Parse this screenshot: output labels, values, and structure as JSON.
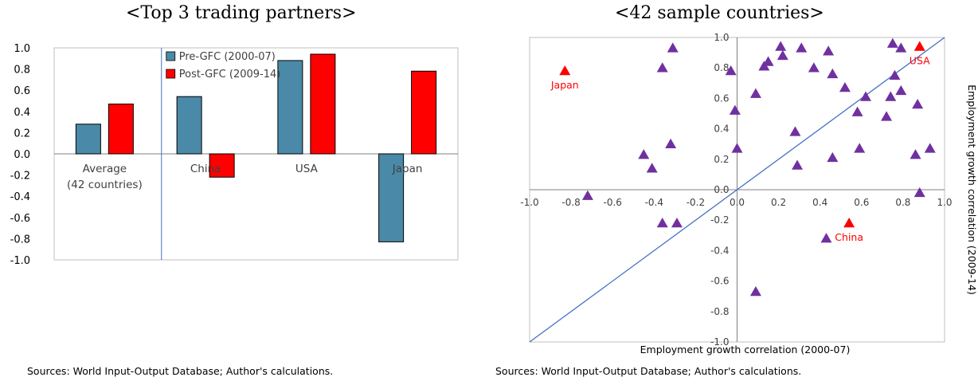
{
  "left_panel": {
    "title": "<Top 3 trading partners>",
    "source": "Sources: World Input-Output Database; Author's calculations."
  },
  "right_panel": {
    "title": "<42 sample countries>",
    "source": "Sources: World Input-Output Database; Author's calculations."
  },
  "colors": {
    "pre_gfc": "#4a89a8",
    "post_gfc": "#ff0000",
    "scatter_marker": "#7030a0",
    "highlight_marker": "#ff0000",
    "diagonal_line": "#4472c4"
  },
  "chart_data": [
    {
      "type": "bar",
      "categories": [
        "Average\n(42 countries)",
        "China",
        "USA",
        "Japan"
      ],
      "series": [
        {
          "name": "Pre-GFC (2000-07)",
          "values": [
            0.28,
            0.54,
            0.88,
            -0.83
          ]
        },
        {
          "name": "Post-GFC (2009-14)",
          "values": [
            0.47,
            -0.22,
            0.94,
            0.78
          ]
        }
      ],
      "ylim": [
        -1.0,
        1.0
      ],
      "yticks": [
        "-1.0",
        "-0.8",
        "-0.6",
        "-0.4",
        "-0.2",
        "0.0",
        "0.2",
        "0.4",
        "0.6",
        "0.8",
        "1.0"
      ],
      "legend": "top",
      "grid": false
    },
    {
      "type": "scatter",
      "xlabel": "Employment growth correlation (2000-07)",
      "ylabel": "Employment growth correlation (2009-14)",
      "xlim": [
        -1.0,
        1.0
      ],
      "ylim": [
        -1.0,
        1.0
      ],
      "xticks": [
        "-1.0",
        "-0.8",
        "-0.6",
        "-0.4",
        "-0.2",
        "0.0",
        "0.2",
        "0.4",
        "0.6",
        "0.8",
        "1.0"
      ],
      "yticks": [
        "-1.0",
        "-0.8",
        "-0.6",
        "-0.4",
        "-0.2",
        "0.0",
        "0.2",
        "0.4",
        "0.6",
        "0.8",
        "1.0"
      ],
      "diagonal": "45-degree line",
      "points": [
        {
          "x": -0.72,
          "y": -0.04
        },
        {
          "x": -0.36,
          "y": 0.8
        },
        {
          "x": -0.31,
          "y": 0.93
        },
        {
          "x": -0.45,
          "y": 0.23
        },
        {
          "x": -0.41,
          "y": 0.14
        },
        {
          "x": -0.32,
          "y": 0.3
        },
        {
          "x": -0.36,
          "y": -0.22
        },
        {
          "x": -0.29,
          "y": -0.22
        },
        {
          "x": -0.03,
          "y": 0.78
        },
        {
          "x": -0.01,
          "y": 0.52
        },
        {
          "x": 0.0,
          "y": 0.27
        },
        {
          "x": 0.09,
          "y": 0.63
        },
        {
          "x": 0.13,
          "y": 0.81
        },
        {
          "x": 0.15,
          "y": 0.84
        },
        {
          "x": 0.21,
          "y": 0.94
        },
        {
          "x": 0.22,
          "y": 0.88
        },
        {
          "x": 0.28,
          "y": 0.38
        },
        {
          "x": 0.29,
          "y": 0.16
        },
        {
          "x": 0.31,
          "y": 0.93
        },
        {
          "x": 0.37,
          "y": 0.8
        },
        {
          "x": 0.44,
          "y": 0.91
        },
        {
          "x": 0.46,
          "y": 0.76
        },
        {
          "x": 0.46,
          "y": 0.21
        },
        {
          "x": 0.52,
          "y": 0.67
        },
        {
          "x": 0.58,
          "y": 0.51
        },
        {
          "x": 0.59,
          "y": 0.27
        },
        {
          "x": 0.62,
          "y": 0.61
        },
        {
          "x": 0.72,
          "y": 0.48
        },
        {
          "x": 0.74,
          "y": 0.61
        },
        {
          "x": 0.75,
          "y": 0.96
        },
        {
          "x": 0.76,
          "y": 0.75
        },
        {
          "x": 0.79,
          "y": 0.65
        },
        {
          "x": 0.79,
          "y": 0.93
        },
        {
          "x": 0.86,
          "y": 0.23
        },
        {
          "x": 0.87,
          "y": 0.56
        },
        {
          "x": 0.88,
          "y": -0.02
        },
        {
          "x": 0.93,
          "y": 0.27
        },
        {
          "x": 0.09,
          "y": -0.67
        },
        {
          "x": 0.43,
          "y": -0.32
        }
      ],
      "highlighted": [
        {
          "label": "Japan",
          "x": -0.83,
          "y": 0.78
        },
        {
          "label": "USA",
          "x": 0.88,
          "y": 0.94
        },
        {
          "label": "China",
          "x": 0.54,
          "y": -0.22
        }
      ]
    }
  ]
}
